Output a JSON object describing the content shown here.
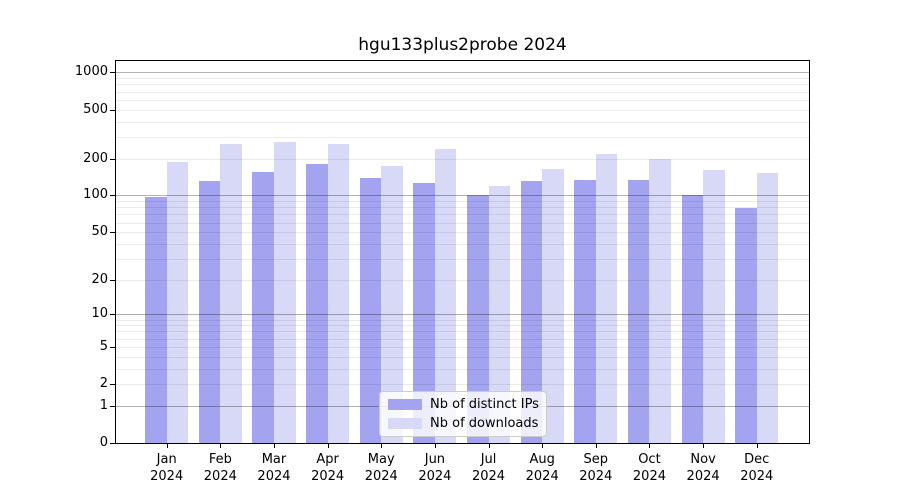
{
  "chart_data": {
    "type": "bar",
    "title": "hgu133plus2probe 2024",
    "categories": [
      "Jan",
      "Feb",
      "Mar",
      "Apr",
      "May",
      "Jun",
      "Jul",
      "Aug",
      "Sep",
      "Oct",
      "Nov",
      "Dec"
    ],
    "year": "2024",
    "series": [
      {
        "name": "Nb of distinct IPs",
        "color": "#a3a3f0",
        "values": [
          97,
          132,
          155,
          181,
          138,
          127,
          100,
          132,
          135,
          135,
          101,
          79
        ]
      },
      {
        "name": "Nb of downloads",
        "color": "#d8d8f7",
        "values": [
          186,
          261,
          274,
          265,
          175,
          237,
          120,
          164,
          217,
          199,
          160,
          152
        ]
      }
    ],
    "yticks": [
      0,
      1,
      2,
      5,
      10,
      20,
      50,
      100,
      200,
      500,
      1000
    ],
    "ylim": [
      0,
      1280
    ],
    "yscale": "log1p",
    "grid": true,
    "grid_major_at": [
      1,
      10,
      100,
      1000
    ],
    "grid_minor_at": [
      2,
      3,
      4,
      5,
      6,
      7,
      8,
      9,
      20,
      30,
      40,
      50,
      60,
      70,
      80,
      90,
      200,
      300,
      400,
      500,
      600,
      700,
      800,
      900
    ],
    "legend_position": "lower center",
    "colors": {
      "spine": "#000000",
      "grid_major": "rgba(0,0,0,0.30)",
      "grid_minor": "rgba(0,0,0,0.08)",
      "legend_border": "#cccccc"
    }
  }
}
